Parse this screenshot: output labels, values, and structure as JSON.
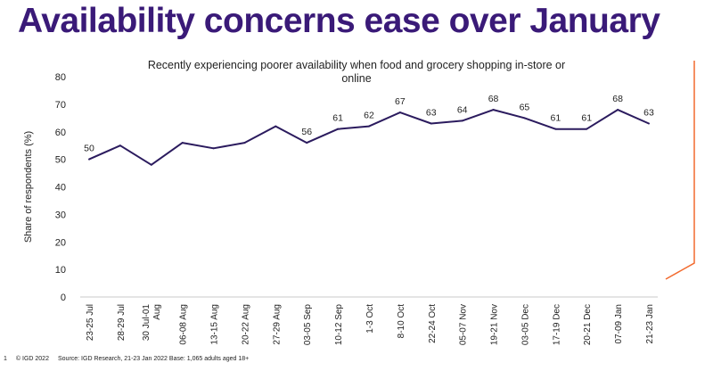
{
  "slide": {
    "title": "Availability concerns ease over January",
    "page_number": "1",
    "copyright": "© IGD 2022",
    "source": "Source: IGD Research, 21-23 Jan 2022",
    "base": "Base: 1,065 adults aged 18+"
  },
  "colors": {
    "title": "#3a1a78",
    "line": "#2b1b5e",
    "accent_orange": "#f26a2e"
  },
  "chart_data": {
    "type": "line",
    "title": "Recently experiencing poorer availability when food and grocery shopping in-store or online",
    "title_lines": [
      "Recently experiencing poorer availability when food and grocery shopping in-store or",
      "online"
    ],
    "ylabel": "Share of respondents (%)",
    "xlabel": "",
    "ylim": [
      0,
      80
    ],
    "yticks": [
      0,
      10,
      20,
      30,
      40,
      50,
      60,
      70,
      80
    ],
    "grid": false,
    "categories": [
      "23-25 Jul",
      "28-29 Jul",
      "30 Jul-01 Aug",
      "06-08 Aug",
      "13-15 Aug",
      "20-22 Aug",
      "27-29 Aug",
      "03-05 Sep",
      "10-12 Sep",
      "1-3 Oct",
      "8-10 Oct",
      "22-24 Oct",
      "05-07 Nov",
      "19-21 Nov",
      "03-05 Dec",
      "17-19 Dec",
      "20-21 Dec",
      "07-09 Jan",
      "21-23 Jan"
    ],
    "values": [
      50,
      55,
      48,
      56,
      54,
      56,
      62,
      56,
      61,
      62,
      67,
      63,
      64,
      68,
      65,
      61,
      61,
      68,
      63
    ],
    "data_labels": [
      "50",
      "",
      "",
      "",
      "",
      "",
      "",
      "56",
      "61",
      "62",
      "67",
      "63",
      "64",
      "68",
      "65",
      "61",
      "61",
      "68",
      "63"
    ]
  }
}
